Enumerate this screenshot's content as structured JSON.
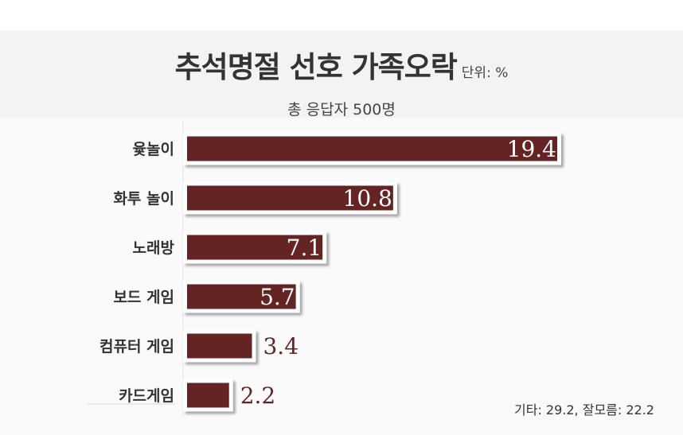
{
  "chart_data": {
    "type": "bar",
    "orientation": "horizontal",
    "title": "추석명절 선호 가족오락",
    "unit": "단위: %",
    "subtitle": "총 응답자 500명",
    "categories": [
      "윷놀이",
      "화투 놀이",
      "노래방",
      "보드 게임",
      "컴퓨터 게임",
      "카드게임"
    ],
    "values": [
      19.4,
      10.8,
      7.1,
      5.7,
      3.4,
      2.2
    ],
    "value_labels": [
      "19.4",
      "10.8",
      "7.1",
      "5.7",
      "3.4",
      "2.2"
    ],
    "xlim": [
      0,
      19.4
    ],
    "grid": false,
    "bar_color": "#642424",
    "footnote": "기타: 29.2, 잘모름: 22.2"
  }
}
